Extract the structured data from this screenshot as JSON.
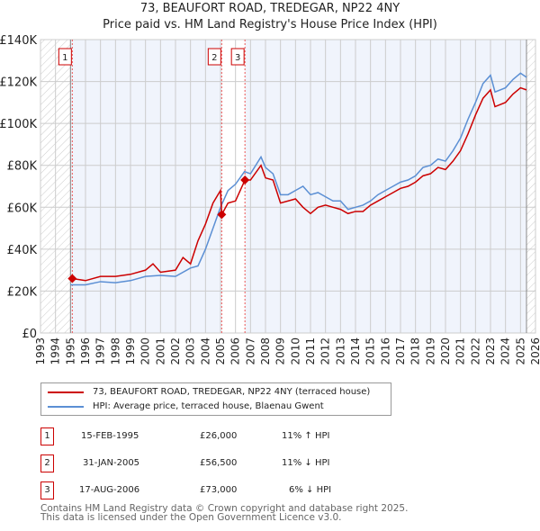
{
  "chart_data": {
    "type": "line",
    "title": "73, BEAUFORT ROAD, TREDEGAR, NP22 4NY",
    "subtitle": "Price paid vs. HM Land Registry's House Price Index (HPI)",
    "xlim": [
      1993,
      2026
    ],
    "ylim": [
      0,
      140000
    ],
    "x_ticks": [
      "1993",
      "1994",
      "1995",
      "1996",
      "1997",
      "1998",
      "1999",
      "2000",
      "2001",
      "2002",
      "2003",
      "2004",
      "2005",
      "2006",
      "2007",
      "2008",
      "2009",
      "2010",
      "2011",
      "2012",
      "2013",
      "2014",
      "2015",
      "2016",
      "2017",
      "2018",
      "2019",
      "2020",
      "2021",
      "2022",
      "2023",
      "2024",
      "2025",
      "2026"
    ],
    "y_ticks": [
      {
        "v": 0,
        "label": "£0"
      },
      {
        "v": 20000,
        "label": "£20K"
      },
      {
        "v": 40000,
        "label": "£40K"
      },
      {
        "v": 60000,
        "label": "£60K"
      },
      {
        "v": 80000,
        "label": "£80K"
      },
      {
        "v": 100000,
        "label": "£100K"
      },
      {
        "v": 120000,
        "label": "£120K"
      },
      {
        "v": 140000,
        "label": "£140K"
      }
    ],
    "grid": true,
    "series": [
      {
        "name": "73, BEAUFORT ROAD, TREDEGAR, NP22 4NY (terraced house)",
        "color": "#cc0000",
        "x": [
          1995.12,
          1996,
          1997,
          1998,
          1999,
          2000,
          2000.5,
          2001,
          2002,
          2002.5,
          2003,
          2003.5,
          2004,
          2004.5,
          2005,
          2005.08,
          2005.5,
          2006,
          2006.63,
          2007,
          2007.7,
          2008,
          2008.5,
          2009,
          2010,
          2010.5,
          2011,
          2011.5,
          2012,
          2012.5,
          2013,
          2013.5,
          2014,
          2014.5,
          2015,
          2015.5,
          2016,
          2016.5,
          2017,
          2017.5,
          2018,
          2018.5,
          2019,
          2019.5,
          2020,
          2020.5,
          2021,
          2021.5,
          2022,
          2022.5,
          2023,
          2023.3,
          2024,
          2024.5,
          2025,
          2025.4
        ],
        "values": [
          26000,
          25000,
          27000,
          27000,
          28000,
          30000,
          33000,
          29000,
          30000,
          36000,
          33000,
          44000,
          52000,
          62000,
          68000,
          56500,
          62000,
          63000,
          73000,
          73000,
          80000,
          74000,
          73000,
          62000,
          64000,
          60000,
          57000,
          60000,
          61000,
          60000,
          59000,
          57000,
          58000,
          58000,
          61000,
          63000,
          65000,
          67000,
          69000,
          70000,
          72000,
          75000,
          76000,
          79000,
          78000,
          82000,
          87000,
          95000,
          104000,
          112000,
          116000,
          108000,
          110000,
          114000,
          117000,
          116000
        ]
      },
      {
        "name": "HPI: Average price, terraced house, Blaenau Gwent",
        "color": "#5b8fd4",
        "x": [
          1995,
          1996,
          1997,
          1998,
          1999,
          2000,
          2001,
          2002,
          2003,
          2003.5,
          2004,
          2004.5,
          2005,
          2005.5,
          2006,
          2006.6,
          2007,
          2007.7,
          2008,
          2008.5,
          2009,
          2009.5,
          2010,
          2010.5,
          2011,
          2011.5,
          2012,
          2012.5,
          2013,
          2013.5,
          2014,
          2014.5,
          2015,
          2015.5,
          2016,
          2016.5,
          2017,
          2017.5,
          2018,
          2018.5,
          2019,
          2019.5,
          2020,
          2020.5,
          2021,
          2021.5,
          2022,
          2022.5,
          2023,
          2023.3,
          2024,
          2024.5,
          2025,
          2025.4
        ],
        "values": [
          23000,
          23000,
          24500,
          24000,
          25000,
          27000,
          27500,
          27000,
          31000,
          32000,
          40000,
          50000,
          60000,
          68000,
          71000,
          77000,
          76000,
          84000,
          79000,
          76000,
          66000,
          66000,
          68000,
          70000,
          66000,
          67000,
          65000,
          63000,
          63000,
          59000,
          60000,
          61000,
          63000,
          66000,
          68000,
          70000,
          72000,
          73000,
          75000,
          79000,
          80000,
          83000,
          82000,
          87000,
          93000,
          102000,
          110000,
          119000,
          123000,
          115000,
          117000,
          121000,
          124000,
          122000
        ]
      }
    ],
    "sales": [
      {
        "n": "1",
        "date": "15-FEB-1995",
        "x": 1995.12,
        "price": 26000,
        "price_label": "£26,000",
        "hpi": "11% ↑ HPI"
      },
      {
        "n": "2",
        "date": "31-JAN-2005",
        "x": 2005.08,
        "price": 56500,
        "price_label": "£56,500",
        "hpi": "11% ↓ HPI"
      },
      {
        "n": "3",
        "date": "17-AUG-2006",
        "x": 2006.63,
        "price": 73000,
        "price_label": "£73,000",
        "hpi": "6% ↓ HPI"
      }
    ],
    "data_range": [
      1995,
      2025.4
    ]
  },
  "footer": {
    "line1": "Contains HM Land Registry data © Crown copyright and database right 2025.",
    "line2": "This data is licensed under the Open Government Licence v3.0."
  }
}
